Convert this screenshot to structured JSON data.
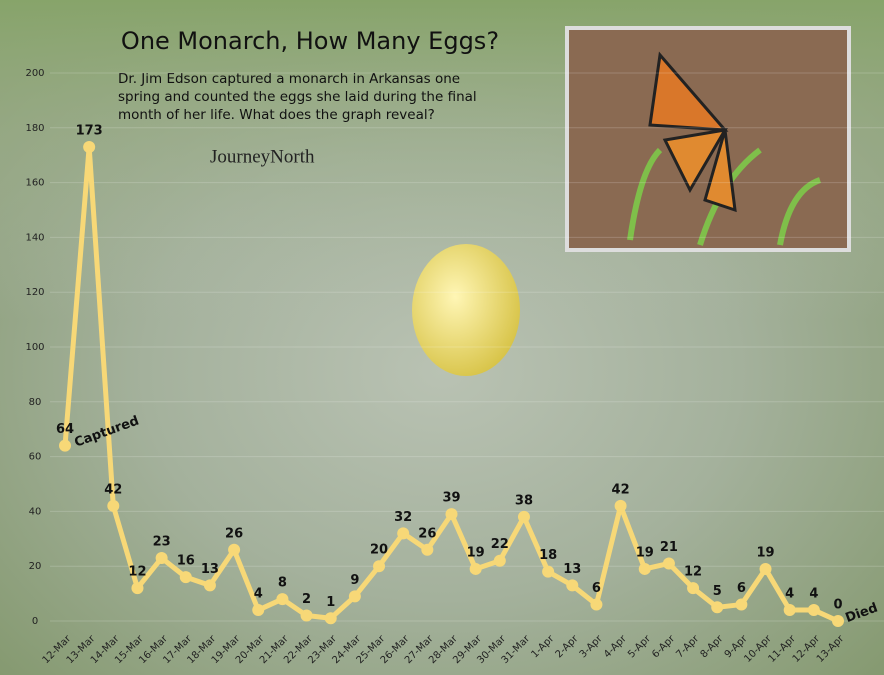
{
  "chart_data": {
    "type": "line",
    "title": "One Monarch, How Many Eggs?",
    "subtitle": "Dr. Jim Edson captured a monarch in Arkansas one spring and counted the eggs she laid during the final month of her life. What does the graph reveal?",
    "logo": "JourneyNorth",
    "annotations": [
      "Captured",
      "Died"
    ],
    "categories": [
      "12-Mar",
      "13-Mar",
      "14-Mar",
      "15-Mar",
      "16-Mar",
      "17-Mar",
      "18-Mar",
      "19-Mar",
      "20-Mar",
      "21-Mar",
      "22-Mar",
      "23-Mar",
      "24-Mar",
      "25-Mar",
      "26-Mar",
      "27-Mar",
      "28-Mar",
      "29-Mar",
      "30-Mar",
      "31-Mar",
      "1-Apr",
      "2-Apr",
      "3-Apr",
      "4-Apr",
      "5-Apr",
      "6-Apr",
      "7-Apr",
      "8-Apr",
      "9-Apr",
      "10-Apr",
      "11-Apr",
      "12-Apr",
      "13-Apr"
    ],
    "series": [
      {
        "color": "#f7d877",
        "values": [
          64,
          173,
          42,
          12,
          23,
          16,
          13,
          26,
          4,
          8,
          2,
          1,
          9,
          20,
          32,
          26,
          39,
          19,
          22,
          38,
          18,
          13,
          6,
          42,
          19,
          21,
          12,
          5,
          6,
          19,
          4,
          4,
          0
        ]
      }
    ],
    "ylim": [
      0,
      200
    ],
    "yticks": [
      0,
      20,
      40,
      60,
      80,
      100,
      120,
      140,
      160,
      180,
      200
    ],
    "grid": true
  }
}
